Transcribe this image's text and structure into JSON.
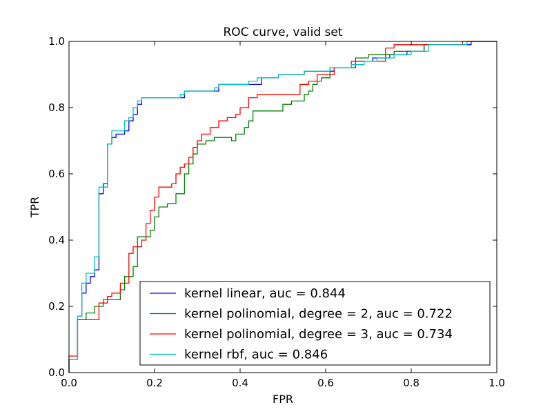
{
  "chart_data": {
    "type": "line",
    "title": "ROC curve, valid set",
    "xlabel": "FPR",
    "ylabel": "TPR",
    "xlim": [
      0.0,
      1.0
    ],
    "ylim": [
      0.0,
      1.0
    ],
    "xticks": [
      "0.0",
      "0.2",
      "0.4",
      "0.6",
      "0.8",
      "1.0"
    ],
    "yticks": [
      "0.0",
      "0.2",
      "0.4",
      "0.6",
      "0.8",
      "1.0"
    ],
    "grid": false,
    "legend_position": "lower-right",
    "step_lines": true,
    "series": [
      {
        "name": "kernel linear, auc = 0.844",
        "color": "#0000ff",
        "points": [
          [
            0.0,
            0.0
          ],
          [
            0.0,
            0.04
          ],
          [
            0.02,
            0.04
          ],
          [
            0.02,
            0.17
          ],
          [
            0.03,
            0.17
          ],
          [
            0.03,
            0.24
          ],
          [
            0.04,
            0.24
          ],
          [
            0.04,
            0.27
          ],
          [
            0.05,
            0.27
          ],
          [
            0.05,
            0.29
          ],
          [
            0.06,
            0.29
          ],
          [
            0.06,
            0.31
          ],
          [
            0.07,
            0.31
          ],
          [
            0.07,
            0.32
          ],
          [
            0.07,
            0.54
          ],
          [
            0.08,
            0.54
          ],
          [
            0.08,
            0.57
          ],
          [
            0.09,
            0.57
          ],
          [
            0.09,
            0.69
          ],
          [
            0.1,
            0.69
          ],
          [
            0.1,
            0.71
          ],
          [
            0.11,
            0.71
          ],
          [
            0.11,
            0.72
          ],
          [
            0.13,
            0.72
          ],
          [
            0.13,
            0.73
          ],
          [
            0.14,
            0.73
          ],
          [
            0.14,
            0.76
          ],
          [
            0.15,
            0.76
          ],
          [
            0.15,
            0.78
          ],
          [
            0.16,
            0.78
          ],
          [
            0.16,
            0.81
          ],
          [
            0.17,
            0.81
          ],
          [
            0.17,
            0.83
          ],
          [
            0.27,
            0.83
          ],
          [
            0.27,
            0.85
          ],
          [
            0.35,
            0.85
          ],
          [
            0.35,
            0.87
          ],
          [
            0.45,
            0.87
          ],
          [
            0.45,
            0.89
          ],
          [
            0.49,
            0.89
          ],
          [
            0.49,
            0.9
          ],
          [
            0.55,
            0.9
          ],
          [
            0.55,
            0.91
          ],
          [
            0.62,
            0.91
          ],
          [
            0.62,
            0.92
          ],
          [
            0.67,
            0.92
          ],
          [
            0.67,
            0.94
          ],
          [
            0.71,
            0.94
          ],
          [
            0.71,
            0.95
          ],
          [
            0.75,
            0.95
          ],
          [
            0.75,
            0.96
          ],
          [
            0.79,
            0.96
          ],
          [
            0.79,
            0.97
          ],
          [
            0.83,
            0.97
          ],
          [
            0.83,
            0.99
          ],
          [
            0.94,
            0.99
          ],
          [
            0.94,
            1.0
          ],
          [
            1.0,
            1.0
          ]
        ]
      },
      {
        "name": "kernel polinomial, degree = 2, auc = 0.722",
        "color": "#008000",
        "points": [
          [
            0.0,
            0.0
          ],
          [
            0.0,
            0.04
          ],
          [
            0.02,
            0.04
          ],
          [
            0.02,
            0.16
          ],
          [
            0.04,
            0.16
          ],
          [
            0.04,
            0.18
          ],
          [
            0.06,
            0.18
          ],
          [
            0.06,
            0.2
          ],
          [
            0.08,
            0.2
          ],
          [
            0.08,
            0.22
          ],
          [
            0.12,
            0.22
          ],
          [
            0.12,
            0.25
          ],
          [
            0.13,
            0.25
          ],
          [
            0.13,
            0.29
          ],
          [
            0.15,
            0.29
          ],
          [
            0.15,
            0.32
          ],
          [
            0.16,
            0.32
          ],
          [
            0.16,
            0.41
          ],
          [
            0.19,
            0.41
          ],
          [
            0.19,
            0.43
          ],
          [
            0.2,
            0.43
          ],
          [
            0.2,
            0.47
          ],
          [
            0.21,
            0.47
          ],
          [
            0.21,
            0.5
          ],
          [
            0.23,
            0.5
          ],
          [
            0.23,
            0.51
          ],
          [
            0.25,
            0.51
          ],
          [
            0.25,
            0.54
          ],
          [
            0.27,
            0.54
          ],
          [
            0.27,
            0.6
          ],
          [
            0.28,
            0.6
          ],
          [
            0.28,
            0.63
          ],
          [
            0.29,
            0.63
          ],
          [
            0.29,
            0.66
          ],
          [
            0.3,
            0.66
          ],
          [
            0.3,
            0.69
          ],
          [
            0.32,
            0.69
          ],
          [
            0.32,
            0.7
          ],
          [
            0.34,
            0.7
          ],
          [
            0.34,
            0.71
          ],
          [
            0.38,
            0.71
          ],
          [
            0.38,
            0.7
          ],
          [
            0.39,
            0.7
          ],
          [
            0.39,
            0.72
          ],
          [
            0.41,
            0.72
          ],
          [
            0.41,
            0.74
          ],
          [
            0.42,
            0.74
          ],
          [
            0.42,
            0.76
          ],
          [
            0.43,
            0.76
          ],
          [
            0.43,
            0.79
          ],
          [
            0.5,
            0.79
          ],
          [
            0.5,
            0.81
          ],
          [
            0.52,
            0.81
          ],
          [
            0.52,
            0.82
          ],
          [
            0.55,
            0.82
          ],
          [
            0.55,
            0.84
          ],
          [
            0.56,
            0.84
          ],
          [
            0.56,
            0.85
          ],
          [
            0.57,
            0.85
          ],
          [
            0.57,
            0.87
          ],
          [
            0.58,
            0.87
          ],
          [
            0.58,
            0.88
          ],
          [
            0.59,
            0.88
          ],
          [
            0.59,
            0.89
          ],
          [
            0.61,
            0.89
          ],
          [
            0.61,
            0.92
          ],
          [
            0.67,
            0.92
          ],
          [
            0.67,
            0.95
          ],
          [
            0.7,
            0.95
          ],
          [
            0.7,
            0.96
          ],
          [
            0.76,
            0.96
          ],
          [
            0.76,
            0.97
          ],
          [
            0.83,
            0.97
          ],
          [
            0.83,
            0.99
          ],
          [
            0.93,
            0.99
          ],
          [
            0.93,
            1.0
          ],
          [
            1.0,
            1.0
          ]
        ]
      },
      {
        "name": "kernel polinomial, degree = 3, auc = 0.734",
        "color": "#ff0000",
        "points": [
          [
            0.0,
            0.0
          ],
          [
            0.0,
            0.05
          ],
          [
            0.02,
            0.05
          ],
          [
            0.02,
            0.16
          ],
          [
            0.07,
            0.16
          ],
          [
            0.07,
            0.21
          ],
          [
            0.09,
            0.21
          ],
          [
            0.09,
            0.23
          ],
          [
            0.1,
            0.23
          ],
          [
            0.1,
            0.24
          ],
          [
            0.12,
            0.24
          ],
          [
            0.12,
            0.27
          ],
          [
            0.14,
            0.27
          ],
          [
            0.14,
            0.36
          ],
          [
            0.15,
            0.36
          ],
          [
            0.15,
            0.38
          ],
          [
            0.17,
            0.38
          ],
          [
            0.17,
            0.4
          ],
          [
            0.18,
            0.4
          ],
          [
            0.18,
            0.45
          ],
          [
            0.19,
            0.45
          ],
          [
            0.19,
            0.49
          ],
          [
            0.2,
            0.49
          ],
          [
            0.2,
            0.53
          ],
          [
            0.21,
            0.53
          ],
          [
            0.21,
            0.56
          ],
          [
            0.24,
            0.56
          ],
          [
            0.24,
            0.57
          ],
          [
            0.25,
            0.57
          ],
          [
            0.25,
            0.6
          ],
          [
            0.26,
            0.6
          ],
          [
            0.26,
            0.62
          ],
          [
            0.27,
            0.62
          ],
          [
            0.27,
            0.63
          ],
          [
            0.28,
            0.63
          ],
          [
            0.28,
            0.65
          ],
          [
            0.29,
            0.65
          ],
          [
            0.29,
            0.68
          ],
          [
            0.3,
            0.68
          ],
          [
            0.3,
            0.7
          ],
          [
            0.31,
            0.7
          ],
          [
            0.31,
            0.72
          ],
          [
            0.33,
            0.72
          ],
          [
            0.33,
            0.74
          ],
          [
            0.35,
            0.74
          ],
          [
            0.35,
            0.76
          ],
          [
            0.37,
            0.76
          ],
          [
            0.37,
            0.77
          ],
          [
            0.39,
            0.77
          ],
          [
            0.39,
            0.78
          ],
          [
            0.4,
            0.78
          ],
          [
            0.4,
            0.8
          ],
          [
            0.42,
            0.8
          ],
          [
            0.42,
            0.83
          ],
          [
            0.44,
            0.83
          ],
          [
            0.44,
            0.84
          ],
          [
            0.54,
            0.84
          ],
          [
            0.54,
            0.87
          ],
          [
            0.56,
            0.87
          ],
          [
            0.56,
            0.88
          ],
          [
            0.58,
            0.88
          ],
          [
            0.58,
            0.9
          ],
          [
            0.62,
            0.9
          ],
          [
            0.62,
            0.92
          ],
          [
            0.66,
            0.92
          ],
          [
            0.66,
            0.94
          ],
          [
            0.74,
            0.94
          ],
          [
            0.74,
            0.98
          ],
          [
            0.76,
            0.98
          ],
          [
            0.76,
            0.99
          ],
          [
            0.92,
            0.99
          ],
          [
            0.92,
            1.0
          ],
          [
            1.0,
            1.0
          ]
        ]
      },
      {
        "name": "kernel rbf, auc = 0.846",
        "color": "#00bfbf",
        "points": [
          [
            0.0,
            0.0
          ],
          [
            0.0,
            0.04
          ],
          [
            0.02,
            0.04
          ],
          [
            0.02,
            0.17
          ],
          [
            0.03,
            0.17
          ],
          [
            0.03,
            0.27
          ],
          [
            0.04,
            0.27
          ],
          [
            0.04,
            0.3
          ],
          [
            0.06,
            0.3
          ],
          [
            0.06,
            0.35
          ],
          [
            0.07,
            0.35
          ],
          [
            0.07,
            0.56
          ],
          [
            0.09,
            0.56
          ],
          [
            0.09,
            0.69
          ],
          [
            0.1,
            0.69
          ],
          [
            0.1,
            0.73
          ],
          [
            0.13,
            0.73
          ],
          [
            0.13,
            0.76
          ],
          [
            0.14,
            0.76
          ],
          [
            0.14,
            0.77
          ],
          [
            0.15,
            0.77
          ],
          [
            0.15,
            0.8
          ],
          [
            0.16,
            0.8
          ],
          [
            0.16,
            0.82
          ],
          [
            0.17,
            0.82
          ],
          [
            0.17,
            0.83
          ],
          [
            0.26,
            0.83
          ],
          [
            0.26,
            0.84
          ],
          [
            0.27,
            0.84
          ],
          [
            0.27,
            0.85
          ],
          [
            0.34,
            0.85
          ],
          [
            0.34,
            0.86
          ],
          [
            0.35,
            0.86
          ],
          [
            0.35,
            0.87
          ],
          [
            0.42,
            0.87
          ],
          [
            0.42,
            0.88
          ],
          [
            0.44,
            0.88
          ],
          [
            0.44,
            0.89
          ],
          [
            0.49,
            0.89
          ],
          [
            0.49,
            0.9
          ],
          [
            0.55,
            0.9
          ],
          [
            0.55,
            0.91
          ],
          [
            0.61,
            0.91
          ],
          [
            0.61,
            0.92
          ],
          [
            0.66,
            0.92
          ],
          [
            0.66,
            0.93
          ],
          [
            0.69,
            0.93
          ],
          [
            0.69,
            0.94
          ],
          [
            0.72,
            0.94
          ],
          [
            0.72,
            0.95
          ],
          [
            0.76,
            0.95
          ],
          [
            0.76,
            0.96
          ],
          [
            0.8,
            0.96
          ],
          [
            0.8,
            0.97
          ],
          [
            0.84,
            0.97
          ],
          [
            0.84,
            0.99
          ],
          [
            0.93,
            0.99
          ],
          [
            0.93,
            1.0
          ],
          [
            1.0,
            1.0
          ]
        ]
      }
    ]
  }
}
